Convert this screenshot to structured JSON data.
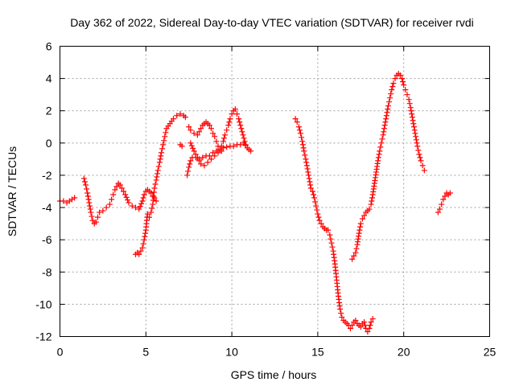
{
  "chart_data": {
    "type": "scatter",
    "title": "Day 362 of 2022, Sidereal Day-to-day VTEC variation (SDTVAR) for receiver rvdi",
    "xlabel": "GPS time / hours",
    "ylabel": "SDTVAR / TECUs",
    "xlim": [
      0,
      25
    ],
    "ylim": [
      -12,
      6
    ],
    "x_ticks": [
      0,
      5,
      10,
      15,
      20,
      25
    ],
    "x_tick_labels": [
      "0",
      "5",
      "10",
      "15",
      "20",
      "25"
    ],
    "y_ticks": [
      -12,
      -10,
      -8,
      -6,
      -4,
      -2,
      0,
      2,
      4,
      6
    ],
    "y_tick_labels": [
      "-12",
      "-10",
      "-8",
      "-6",
      "-4",
      "-2",
      "0",
      "2",
      "4",
      "6"
    ],
    "grid": true,
    "marker": "plus",
    "color": "#ff0000",
    "series": [
      {
        "name": "seg1",
        "points": [
          [
            0.0,
            -3.6
          ],
          [
            0.2,
            -3.6
          ],
          [
            0.4,
            -3.7
          ],
          [
            0.55,
            -3.6
          ],
          [
            0.7,
            -3.5
          ],
          [
            0.85,
            -3.4
          ]
        ]
      },
      {
        "name": "seg2",
        "points": [
          [
            1.4,
            -2.2
          ],
          [
            1.5,
            -2.6
          ],
          [
            1.6,
            -3.1
          ],
          [
            1.7,
            -3.7
          ],
          [
            1.8,
            -4.3
          ],
          [
            1.9,
            -4.8
          ],
          [
            2.0,
            -5.0
          ],
          [
            2.1,
            -4.9
          ],
          [
            2.2,
            -4.6
          ],
          [
            2.3,
            -4.3
          ],
          [
            2.5,
            -4.2
          ],
          [
            2.7,
            -4.0
          ],
          [
            2.9,
            -3.8
          ],
          [
            3.0,
            -3.5
          ],
          [
            3.1,
            -3.2
          ],
          [
            3.2,
            -2.9
          ],
          [
            3.3,
            -2.7
          ],
          [
            3.4,
            -2.5
          ],
          [
            3.5,
            -2.6
          ],
          [
            3.6,
            -2.8
          ],
          [
            3.8,
            -3.2
          ],
          [
            4.0,
            -3.7
          ],
          [
            4.2,
            -3.9
          ],
          [
            4.4,
            -4.0
          ],
          [
            4.6,
            -4.1
          ],
          [
            4.8,
            -3.6
          ],
          [
            4.9,
            -3.2
          ],
          [
            5.0,
            -3.0
          ],
          [
            5.1,
            -2.9
          ],
          [
            5.2,
            -3.0
          ],
          [
            5.3,
            -3.1
          ],
          [
            5.4,
            -3.3
          ],
          [
            5.5,
            -3.4
          ],
          [
            5.6,
            -3.6
          ]
        ]
      },
      {
        "name": "seg3",
        "points": [
          [
            4.4,
            -6.9
          ],
          [
            4.5,
            -6.8
          ],
          [
            4.6,
            -6.9
          ],
          [
            4.7,
            -6.7
          ],
          [
            4.8,
            -6.5
          ],
          [
            4.9,
            -6.0
          ],
          [
            5.0,
            -5.4
          ],
          [
            5.05,
            -4.8
          ],
          [
            5.1,
            -4.4
          ],
          [
            5.2,
            -4.6
          ],
          [
            5.3,
            -4.3
          ],
          [
            5.4,
            -3.8
          ],
          [
            5.45,
            -3.3
          ],
          [
            5.5,
            -2.8
          ],
          [
            5.6,
            -2.3
          ],
          [
            5.7,
            -1.7
          ],
          [
            5.8,
            -1.2
          ],
          [
            5.9,
            -0.6
          ],
          [
            6.0,
            -0.1
          ],
          [
            6.1,
            0.4
          ],
          [
            6.2,
            0.9
          ],
          [
            6.4,
            1.2
          ],
          [
            6.6,
            1.5
          ],
          [
            6.8,
            1.7
          ],
          [
            7.0,
            1.8
          ],
          [
            7.2,
            1.7
          ],
          [
            7.3,
            1.6
          ]
        ]
      },
      {
        "name": "seg4",
        "points": [
          [
            7.0,
            -0.1
          ],
          [
            7.1,
            -0.2
          ]
        ]
      },
      {
        "name": "seg5",
        "points": [
          [
            7.4,
            -2.0
          ],
          [
            7.5,
            -1.5
          ],
          [
            7.6,
            -1.1
          ],
          [
            7.7,
            -0.9
          ],
          [
            7.9,
            -0.9
          ],
          [
            8.1,
            -1.0
          ],
          [
            8.3,
            -0.9
          ],
          [
            8.5,
            -0.8
          ],
          [
            8.7,
            -0.8
          ],
          [
            8.9,
            -0.6
          ],
          [
            9.1,
            -0.5
          ],
          [
            9.3,
            -0.4
          ],
          [
            9.5,
            -0.3
          ],
          [
            9.7,
            -0.25
          ],
          [
            9.9,
            -0.2
          ],
          [
            10.1,
            -0.2
          ],
          [
            10.3,
            -0.1
          ],
          [
            10.5,
            -0.1
          ],
          [
            10.7,
            0.0
          ],
          [
            10.9,
            -0.3
          ],
          [
            11.0,
            -0.4
          ],
          [
            11.1,
            -0.5
          ]
        ]
      },
      {
        "name": "seg6",
        "points": [
          [
            7.5,
            1.0
          ],
          [
            7.6,
            0.8
          ],
          [
            7.8,
            0.6
          ],
          [
            8.0,
            0.5
          ],
          [
            8.1,
            0.7
          ],
          [
            8.2,
            0.9
          ],
          [
            8.3,
            1.1
          ],
          [
            8.4,
            1.2
          ],
          [
            8.5,
            1.3
          ],
          [
            8.6,
            1.2
          ],
          [
            8.7,
            1.1
          ],
          [
            8.8,
            0.9
          ],
          [
            8.9,
            0.6
          ],
          [
            9.0,
            0.4
          ],
          [
            9.1,
            0.1
          ],
          [
            9.2,
            -0.2
          ],
          [
            9.3,
            -0.4
          ],
          [
            9.4,
            -0.2
          ],
          [
            9.5,
            0.1
          ],
          [
            9.6,
            0.5
          ],
          [
            9.7,
            0.8
          ],
          [
            9.8,
            1.1
          ],
          [
            9.9,
            1.5
          ],
          [
            10.0,
            1.8
          ],
          [
            10.1,
            2.0
          ],
          [
            10.2,
            2.1
          ],
          [
            10.3,
            1.8
          ],
          [
            10.4,
            1.5
          ],
          [
            10.5,
            1.1
          ],
          [
            10.6,
            0.7
          ],
          [
            10.7,
            0.3
          ],
          [
            10.8,
            -0.1
          ]
        ]
      },
      {
        "name": "seg7",
        "points": [
          [
            7.6,
            0.0
          ],
          [
            7.8,
            -0.5
          ],
          [
            8.0,
            -0.9
          ],
          [
            8.2,
            -1.3
          ],
          [
            8.4,
            -1.4
          ],
          [
            8.6,
            -1.2
          ],
          [
            8.8,
            -1.0
          ],
          [
            9.0,
            -0.8
          ],
          [
            9.2,
            -0.6
          ],
          [
            9.4,
            -0.5
          ]
        ]
      },
      {
        "name": "seg8",
        "points": [
          [
            13.7,
            1.5
          ],
          [
            13.8,
            1.3
          ],
          [
            13.9,
            1.0
          ],
          [
            14.0,
            0.6
          ],
          [
            14.1,
            0.1
          ],
          [
            14.2,
            -0.5
          ],
          [
            14.3,
            -1.0
          ],
          [
            14.4,
            -1.6
          ],
          [
            14.5,
            -2.2
          ],
          [
            14.6,
            -2.8
          ],
          [
            14.7,
            -3.0
          ],
          [
            14.8,
            -3.4
          ],
          [
            14.9,
            -3.9
          ],
          [
            15.0,
            -4.4
          ],
          [
            15.1,
            -4.8
          ],
          [
            15.2,
            -5.0
          ],
          [
            15.3,
            -5.2
          ],
          [
            15.4,
            -5.3
          ],
          [
            15.5,
            -5.4
          ],
          [
            15.6,
            -5.4
          ],
          [
            15.7,
            -5.7
          ],
          [
            15.8,
            -6.2
          ],
          [
            15.9,
            -6.7
          ],
          [
            16.0,
            -7.5
          ],
          [
            16.1,
            -8.5
          ],
          [
            16.2,
            -9.5
          ],
          [
            16.3,
            -10.3
          ],
          [
            16.4,
            -10.8
          ],
          [
            16.5,
            -11.0
          ],
          [
            16.6,
            -11.1
          ],
          [
            16.7,
            -11.2
          ],
          [
            16.8,
            -11.3
          ],
          [
            16.9,
            -11.5
          ],
          [
            17.0,
            -11.3
          ],
          [
            17.1,
            -11.1
          ],
          [
            17.2,
            -11.0
          ],
          [
            17.3,
            -11.2
          ],
          [
            17.4,
            -11.3
          ],
          [
            17.5,
            -11.4
          ],
          [
            17.6,
            -11.2
          ],
          [
            17.7,
            -11.1
          ],
          [
            17.8,
            -11.5
          ],
          [
            17.9,
            -11.7
          ],
          [
            18.0,
            -11.5
          ],
          [
            18.1,
            -11.1
          ],
          [
            18.2,
            -10.9
          ]
        ]
      },
      {
        "name": "seg9",
        "points": [
          [
            17.0,
            -7.2
          ],
          [
            17.1,
            -7.0
          ],
          [
            17.2,
            -6.8
          ],
          [
            17.3,
            -6.3
          ],
          [
            17.4,
            -5.6
          ],
          [
            17.5,
            -5.0
          ],
          [
            17.6,
            -4.7
          ],
          [
            17.7,
            -4.5
          ],
          [
            17.8,
            -4.3
          ],
          [
            17.9,
            -4.2
          ],
          [
            18.0,
            -4.1
          ],
          [
            18.1,
            -3.8
          ],
          [
            18.2,
            -3.2
          ],
          [
            18.3,
            -2.5
          ],
          [
            18.4,
            -1.8
          ],
          [
            18.5,
            -1.1
          ],
          [
            18.6,
            -0.5
          ],
          [
            18.7,
            0.0
          ],
          [
            18.8,
            0.5
          ],
          [
            18.9,
            1.1
          ],
          [
            19.0,
            1.7
          ],
          [
            19.1,
            2.3
          ],
          [
            19.2,
            2.8
          ],
          [
            19.3,
            3.3
          ],
          [
            19.4,
            3.7
          ],
          [
            19.5,
            4.0
          ],
          [
            19.6,
            4.2
          ],
          [
            19.7,
            4.3
          ],
          [
            19.8,
            4.2
          ],
          [
            19.9,
            4.0
          ],
          [
            20.0,
            3.6
          ],
          [
            20.1,
            3.3
          ],
          [
            20.2,
            3.0
          ],
          [
            20.3,
            2.7
          ],
          [
            20.4,
            2.2
          ],
          [
            20.5,
            1.6
          ],
          [
            20.6,
            1.0
          ],
          [
            20.7,
            0.4
          ],
          [
            20.8,
            -0.2
          ],
          [
            20.9,
            -0.7
          ],
          [
            21.0,
            -1.1
          ],
          [
            21.1,
            -1.4
          ],
          [
            21.2,
            -1.7
          ]
        ]
      },
      {
        "name": "seg10",
        "points": [
          [
            22.0,
            -4.3
          ],
          [
            22.1,
            -4.1
          ],
          [
            22.2,
            -3.8
          ],
          [
            22.3,
            -3.5
          ],
          [
            22.4,
            -3.3
          ],
          [
            22.5,
            -3.1
          ],
          [
            22.6,
            -3.2
          ],
          [
            22.7,
            -3.1
          ]
        ]
      }
    ]
  }
}
